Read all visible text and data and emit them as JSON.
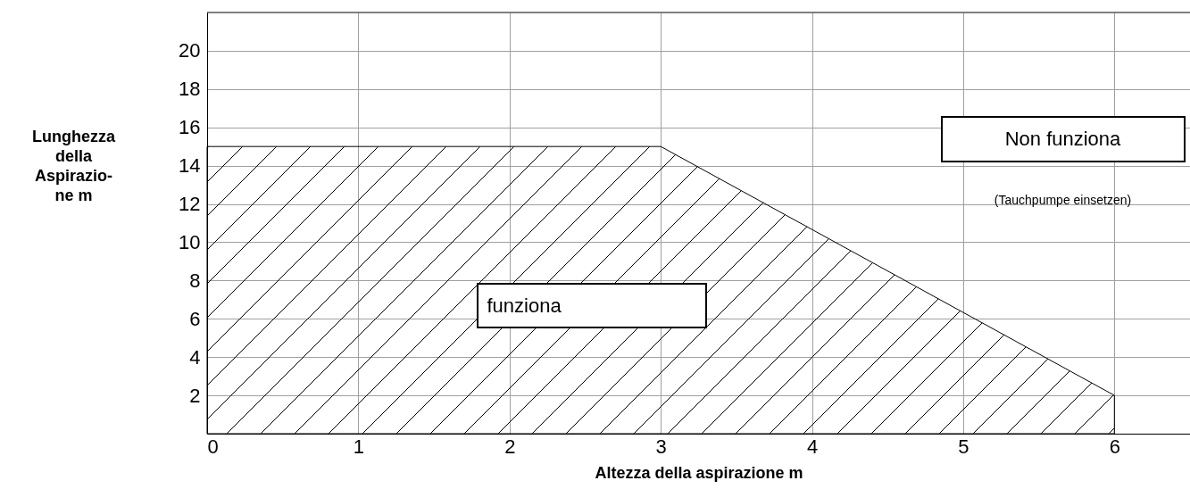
{
  "chart_data": {
    "type": "area",
    "xlabel": "Altezza della aspirazione m",
    "ylabel": "Lunghezza\ndella\nAspirazio-\nne m",
    "x": [
      0,
      3,
      6
    ],
    "series": [
      {
        "color": "#000000",
        "values": [
          15,
          15,
          2
        ]
      }
    ],
    "xlim": [
      0,
      6.5
    ],
    "xticks": [
      0,
      1,
      2,
      3,
      4,
      5,
      6
    ],
    "ylim": [
      0,
      22
    ],
    "yticks": [
      2,
      4,
      6,
      8,
      10,
      12,
      14,
      16,
      18,
      20
    ],
    "grid": true,
    "annotations": [
      "funziona",
      "Non funziona",
      "(Tauchpumpe einsetzen)"
    ]
  }
}
